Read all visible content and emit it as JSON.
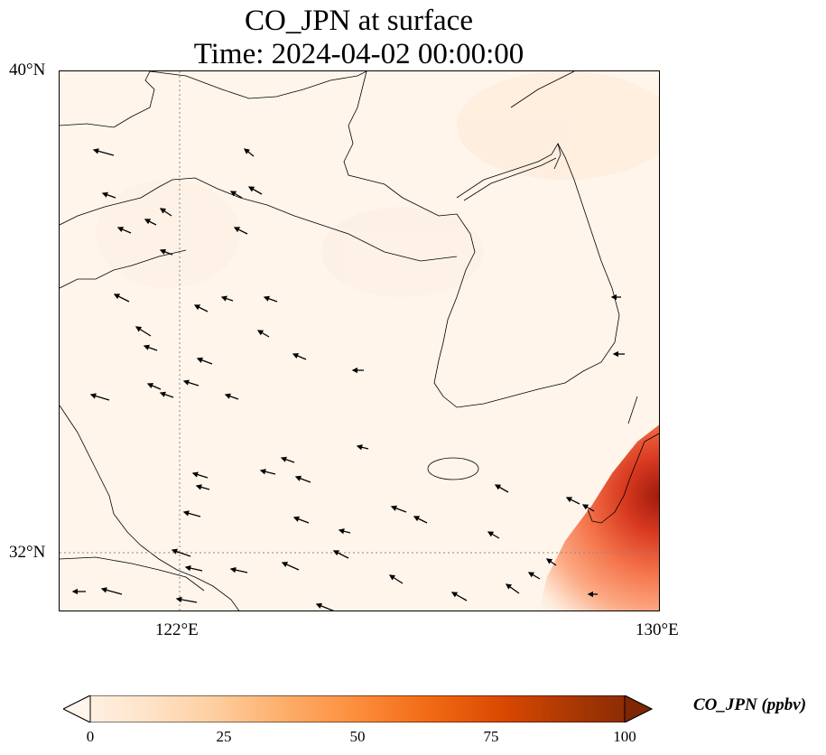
{
  "title": {
    "line1": "CO_JPN at surface",
    "line2": "Time: 2024-04-02 00:00:00"
  },
  "axes": {
    "lat_ticks": [
      "40°N",
      "32°N"
    ],
    "lon_ticks": [
      "122°E",
      "130°E"
    ]
  },
  "colorbar": {
    "label": "CO_JPN (ppbv)",
    "ticks": [
      "0",
      "25",
      "50",
      "75",
      "100"
    ],
    "colormap": [
      "#fff5eb",
      "#fee6ce",
      "#fdd0a2",
      "#fdae6b",
      "#fd8d3c",
      "#f16913",
      "#d94801",
      "#a63603",
      "#7f2704"
    ]
  },
  "map_data": {
    "type": "field-with-wind-vectors",
    "variable": "CO_JPN",
    "units": "ppbv",
    "level": "surface",
    "lon_range": [
      120,
      130
    ],
    "lat_range": [
      31,
      40
    ],
    "color_range": [
      0,
      100
    ],
    "background_color": "#fff5eb",
    "plume": "High CO_JPN concentrations (up to ~100 ppbv) at the south-east corner near Kyushu, Japan; near 0 elsewhere",
    "wind": "Predominantly westward (easterly) surface winds over the Yellow Sea, Korea and East China Sea"
  }
}
